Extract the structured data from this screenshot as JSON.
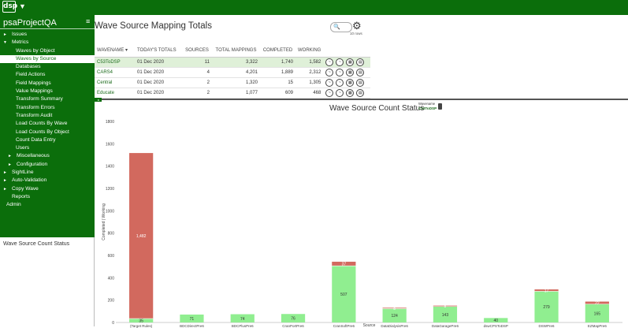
{
  "topbar": {
    "logo": "dsp",
    "caret": "▼"
  },
  "sidebar": {
    "project": "psaProjectQA",
    "menu_icon": "≡",
    "items": [
      {
        "label": "Issues",
        "arrow": "►",
        "level": 0
      },
      {
        "label": "Metrics",
        "arrow": "▼",
        "level": 0
      },
      {
        "label": "Waves by Object",
        "level": 1
      },
      {
        "label": "Waves by Source",
        "level": 1,
        "selected": true
      },
      {
        "label": "Databases",
        "level": 1
      },
      {
        "label": "Field Actions",
        "level": 1
      },
      {
        "label": "Field Mappings",
        "level": 1
      },
      {
        "label": "Value Mappings",
        "level": 1
      },
      {
        "label": "Transform Summary",
        "level": 1
      },
      {
        "label": "Transform Errors",
        "level": 1
      },
      {
        "label": "Transform Audit",
        "level": 1
      },
      {
        "label": "Load Counts By Wave",
        "level": 1
      },
      {
        "label": "Load Counts By Object",
        "level": 1
      },
      {
        "label": "Count Data Entry",
        "level": 1
      },
      {
        "label": "Users",
        "level": 1
      },
      {
        "label": "Miscellaneous",
        "arrow": "►",
        "level": 2
      },
      {
        "label": "Configuration",
        "arrow": "►",
        "level": 2
      },
      {
        "label": "SightLine",
        "arrow": "►",
        "level": 0
      },
      {
        "label": "Auto-Validation",
        "arrow": "►",
        "level": 0
      },
      {
        "label": "Copy Wave",
        "arrow": "►",
        "level": 0
      },
      {
        "label": "Reports",
        "level": 3
      },
      {
        "label": "Admin",
        "level": 4
      }
    ],
    "bottom_panel_title": "Wave Source Count Status"
  },
  "main": {
    "title": "Wave Source Mapping Totals",
    "search_icon": "🔍",
    "gear_icon": "⚙",
    "rows_count": "10 rows",
    "columns": [
      "WAVENAME ▾",
      "TODAY'S TOTALS",
      "SOURCES",
      "TOTAL MAPPINGS",
      "COMPLETED",
      "WORKING"
    ],
    "rows": [
      {
        "wavename": "C53ToDSP",
        "today": "01 Dec 2020",
        "sources": "11",
        "total": "3,322",
        "completed": "1,740",
        "working": "1,582",
        "selected": true
      },
      {
        "wavename": "CARS4",
        "today": "01 Dec 2020",
        "sources": "4",
        "total": "4,201",
        "completed": "1,889",
        "working": "2,312"
      },
      {
        "wavename": "Central",
        "today": "01 Dec 2020",
        "sources": "2",
        "total": "1,320",
        "completed": "15",
        "working": "1,305"
      },
      {
        "wavename": "Educate",
        "today": "01 Dec 2020",
        "sources": "2",
        "total": "1,077",
        "completed": "609",
        "working": "468"
      }
    ],
    "row_action_icons": [
      "chart-icon",
      "chart-icon",
      "grid-icon",
      "report-icon"
    ],
    "chart_title": "Wave Source Count Status",
    "wavename_label": "Wavename",
    "wavename_value": "C53ToDSP",
    "collapse_icon": "◂"
  },
  "chart_data": {
    "type": "bar",
    "stacked": true,
    "categories": [
      "(Target Rules)",
      "BDCDirectPre6",
      "BDCPlusPre6",
      "CranPortPre6",
      "CranSoftPre6",
      "DataDialysisPre6",
      "DataGaragePre6",
      "dswCPSToDSP",
      "DSWPre6",
      "EZMapPre6"
    ],
    "series": [
      {
        "values": [
          35,
          71,
          74,
          76,
          507,
          124,
          143,
          40,
          279,
          165
        ],
        "color": "#90ee90"
      },
      {
        "values": [
          1482,
          0,
          0,
          0,
          37,
          8,
          8,
          0,
          17,
          22
        ],
        "color": "#d2695e"
      }
    ],
    "labels_working": [
      "1,482",
      "",
      "",
      "",
      "37",
      "8",
      "8",
      "",
      "17",
      "22"
    ],
    "labels_completed": [
      "35",
      "71",
      "74",
      "76",
      "507",
      "124",
      "143",
      "40",
      "279",
      "165"
    ],
    "ylabel": "Completed | Working",
    "xlabel": "Source",
    "ylim": [
      0,
      1800
    ],
    "yticks": [
      "0",
      "200",
      "400",
      "600",
      "800",
      "1000",
      "1200",
      "1400",
      "1600",
      "1800"
    ],
    "grid": false
  }
}
